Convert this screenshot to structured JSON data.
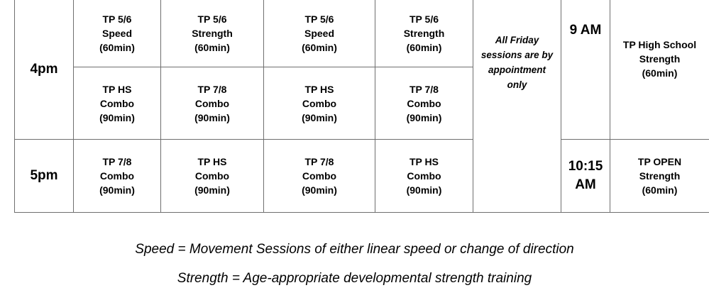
{
  "schedule": {
    "rows": [
      {
        "time": "4pm",
        "slots": [
          [
            "TP 5/6\nSpeed\n(60min)",
            "TP 5/6\nStrength\n(60min)",
            "TP 5/6\nSpeed\n(60min)",
            "TP 5/6\nStrength\n(60min)"
          ],
          [
            "TP HS\nCombo\n(90min)",
            "TP 7/8\nCombo\n(90min)",
            "TP HS\nCombo\n(90min)",
            "TP 7/8\nCombo\n(90min)"
          ]
        ]
      },
      {
        "time": "5pm",
        "slots": [
          [
            "TP 7/8\nCombo\n(90min)",
            "TP HS\nCombo\n(90min)",
            "TP 7/8\nCombo\n(90min)",
            "TP HS\nCombo\n(90min)"
          ]
        ]
      }
    ],
    "friday_note": "All Friday\nsessions are by\nappointment\nonly",
    "saturday": [
      {
        "time": "9 AM",
        "session": "TP High School\nStrength\n(60min)"
      },
      {
        "time": "10:15\nAM",
        "session": "TP OPEN\nStrength\n(60min)"
      }
    ]
  },
  "legend": {
    "speed": "Speed = Movement Sessions of either linear speed or change of direction",
    "strength": "Strength = Age-appropriate developmental strength training"
  }
}
